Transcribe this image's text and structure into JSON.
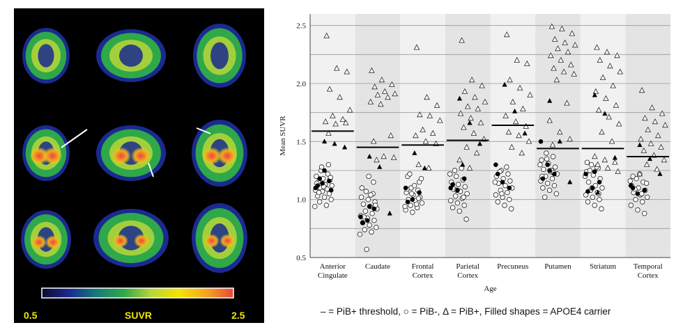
{
  "brain_panel": {
    "colorbar_min": "0.5",
    "colorbar_label": "SUVR",
    "colorbar_max": "2.5",
    "colorbar_colors": [
      "#0b0b2e",
      "#1b2a8f",
      "#157a7a",
      "#2fa84a",
      "#b8d63a",
      "#f2e600",
      "#f5a623",
      "#e8483a"
    ],
    "label_color": "#f2e600"
  },
  "caption": "– = PiB+ threshold, ○ = PiB-, Δ = PiB+, Filled shapes = APOE4 carrier",
  "chart_data": {
    "type": "scatter",
    "title": "",
    "xlabel": "Age",
    "ylabel": "Mean SUVR",
    "ylim": [
      0.5,
      2.6
    ],
    "yticks": [
      "0.5",
      "1.0",
      "1.5",
      "2.0",
      "2.5"
    ],
    "grid": true,
    "categories": [
      {
        "label": [
          "Anterior",
          "Cingulate"
        ],
        "threshold": 1.59,
        "shade": "light",
        "open_circle": [
          1.25,
          1.22,
          1.2,
          1.18,
          1.17,
          1.15,
          1.13,
          1.12,
          1.1,
          1.09,
          1.08,
          1.07,
          1.05,
          1.03,
          1.02,
          1.0,
          0.98,
          0.95,
          0.94,
          1.28,
          1.3,
          1.14,
          1.11,
          1.19,
          1.06
        ],
        "filled_circle": [
          1.1,
          1.14,
          1.16,
          1.12,
          1.25,
          1.08,
          1.18
        ],
        "open_triangle": [
          2.41,
          2.13,
          2.1,
          1.95,
          1.88,
          1.77,
          1.72,
          1.69,
          1.67,
          1.65,
          1.66,
          1.57
        ],
        "filled_triangle": [
          1.5,
          1.48,
          1.45
        ]
      },
      {
        "label": [
          "Caudate"
        ],
        "threshold": 1.45,
        "shade": "dark",
        "open_circle": [
          1.07,
          1.05,
          1.02,
          1.0,
          0.98,
          0.96,
          0.94,
          0.92,
          0.9,
          0.88,
          0.86,
          0.84,
          0.82,
          0.8,
          0.78,
          0.76,
          0.74,
          0.72,
          0.7,
          0.57,
          1.15,
          1.1,
          1.2,
          0.95,
          0.85,
          1.04
        ],
        "filled_circle": [
          0.85,
          0.82,
          0.92,
          0.8,
          0.94
        ],
        "open_triangle": [
          2.11,
          2.03,
          1.99,
          1.97,
          1.93,
          1.91,
          1.9,
          1.88,
          1.84,
          1.82,
          1.55,
          1.5,
          1.37,
          1.36,
          1.34
        ],
        "filled_triangle": [
          1.37,
          1.28,
          0.88
        ]
      },
      {
        "label": [
          "Frontal",
          "Cortex"
        ],
        "threshold": 1.47,
        "shade": "light",
        "open_circle": [
          1.1,
          1.08,
          1.06,
          1.04,
          1.02,
          1.0,
          0.99,
          0.97,
          0.95,
          0.93,
          0.91,
          0.89,
          1.15,
          1.2,
          1.12,
          1.18,
          1.22,
          0.96,
          0.94,
          1.05,
          1.01,
          1.09
        ],
        "filled_circle": [
          1.1,
          1.0,
          1.06,
          0.98
        ],
        "open_triangle": [
          2.31,
          1.88,
          1.81,
          1.73,
          1.72,
          1.68,
          1.6,
          1.57,
          1.55,
          1.5,
          1.48,
          1.3,
          1.27
        ],
        "filled_triangle": [
          1.4,
          1.27
        ]
      },
      {
        "label": [
          "Parietal",
          "Cortex"
        ],
        "threshold": 1.51,
        "shade": "dark",
        "open_circle": [
          1.2,
          1.17,
          1.15,
          1.13,
          1.11,
          1.09,
          1.07,
          1.05,
          1.03,
          1.01,
          0.99,
          0.97,
          0.95,
          0.93,
          0.9,
          0.83,
          1.25,
          1.27,
          1.22,
          1.08,
          1.02
        ],
        "filled_circle": [
          1.1,
          1.08,
          1.18,
          1.13
        ],
        "open_triangle": [
          2.37,
          2.03,
          1.98,
          1.93,
          1.88,
          1.84,
          1.8,
          1.78,
          1.74,
          1.7,
          1.66,
          1.62,
          1.57,
          1.52,
          1.45,
          1.4,
          1.34,
          1.27
        ],
        "filled_triangle": [
          1.87,
          1.66,
          1.48,
          1.3
        ]
      },
      {
        "label": [
          "Precuneus"
        ],
        "threshold": 1.64,
        "shade": "light",
        "open_circle": [
          1.25,
          1.22,
          1.2,
          1.18,
          1.16,
          1.14,
          1.12,
          1.1,
          1.08,
          1.06,
          1.04,
          1.02,
          1.0,
          0.98,
          0.95,
          0.92,
          1.24,
          1.28,
          1.15,
          1.05
        ],
        "filled_circle": [
          1.3,
          1.15,
          1.1,
          1.22
        ],
        "open_triangle": [
          2.42,
          2.2,
          2.17,
          2.03,
          1.96,
          1.9,
          1.84,
          1.78,
          1.72,
          1.67,
          1.63,
          1.58,
          1.55,
          1.5,
          1.45,
          1.4
        ],
        "filled_triangle": [
          1.99,
          1.76,
          1.57
        ]
      },
      {
        "label": [
          "Putamen"
        ],
        "threshold": 1.44,
        "shade": "dark",
        "open_circle": [
          1.4,
          1.37,
          1.34,
          1.31,
          1.28,
          1.26,
          1.24,
          1.22,
          1.2,
          1.18,
          1.16,
          1.14,
          1.12,
          1.1,
          1.08,
          1.05,
          1.02,
          1.25,
          1.3,
          1.35,
          1.23,
          1.2
        ],
        "filled_circle": [
          1.5,
          1.3,
          1.22,
          1.18,
          1.25
        ],
        "open_triangle": [
          2.49,
          2.47,
          2.43,
          2.38,
          2.35,
          2.33,
          2.3,
          2.27,
          2.24,
          2.2,
          2.16,
          2.13,
          2.1,
          2.08,
          2.03,
          1.83,
          1.68,
          1.58,
          1.52,
          1.47
        ],
        "filled_triangle": [
          1.85,
          1.5,
          1.15
        ]
      },
      {
        "label": [
          "Striatum"
        ],
        "threshold": 1.44,
        "shade": "light",
        "open_circle": [
          1.3,
          1.27,
          1.24,
          1.21,
          1.18,
          1.15,
          1.12,
          1.1,
          1.08,
          1.06,
          1.04,
          1.02,
          1.0,
          0.98,
          0.95,
          0.92,
          1.25,
          1.28,
          1.2,
          1.1,
          1.05,
          1.32
        ],
        "filled_circle": [
          1.22,
          1.1,
          1.15,
          1.07,
          1.24
        ],
        "open_triangle": [
          2.31,
          2.27,
          2.24,
          2.2,
          2.15,
          2.1,
          2.05,
          1.98,
          1.93,
          1.87,
          1.81,
          1.77,
          1.71,
          1.65,
          1.58,
          1.5,
          1.37,
          1.34,
          1.32,
          1.3,
          1.27,
          1.24
        ],
        "filled_triangle": [
          1.9,
          1.74,
          1.36,
          1.06
        ]
      },
      {
        "label": [
          "Temporal",
          "Cortex"
        ],
        "threshold": 1.37,
        "shade": "dark",
        "open_circle": [
          1.18,
          1.15,
          1.12,
          1.1,
          1.08,
          1.06,
          1.04,
          1.02,
          1.0,
          0.98,
          0.95,
          0.91,
          0.88,
          1.2,
          1.22,
          1.14,
          1.09,
          1.05,
          1.16
        ],
        "filled_circle": [
          1.12,
          1.05,
          1.08,
          1.1
        ],
        "open_triangle": [
          1.94,
          1.79,
          1.74,
          1.7,
          1.67,
          1.64,
          1.6,
          1.55,
          1.52,
          1.48,
          1.45,
          1.42,
          1.38,
          1.34,
          1.3,
          1.26,
          1.22
        ],
        "filled_triangle": [
          1.47,
          1.35,
          1.22
        ]
      }
    ]
  }
}
